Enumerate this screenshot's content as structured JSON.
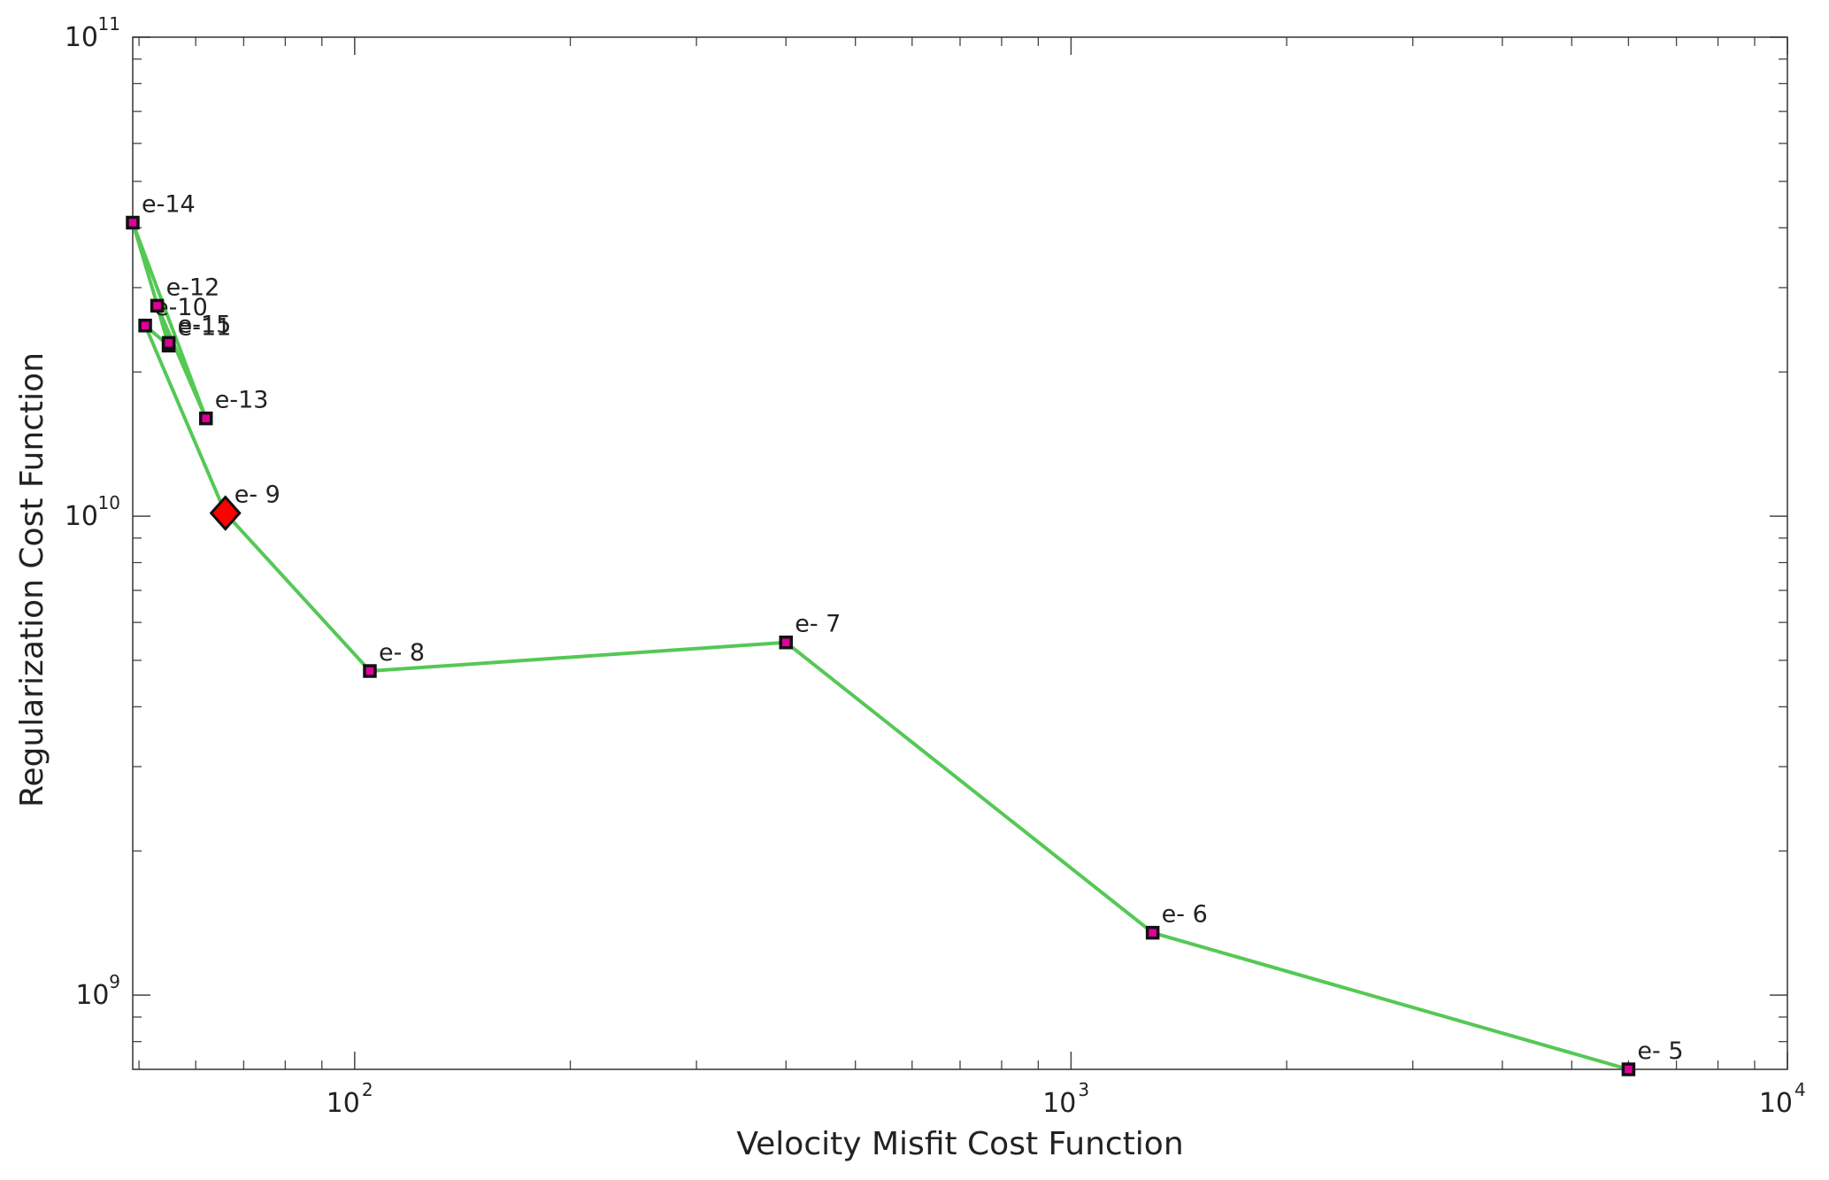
{
  "chart_data": {
    "type": "line",
    "title": "",
    "xlabel": "Velocity Misfit Cost Function",
    "ylabel": "Regularization Cost Function",
    "x_scale": "log",
    "y_scale": "log",
    "xlim": [
      49,
      10000
    ],
    "ylim": [
      700000000,
      100000000000
    ],
    "x_ticks": [
      {
        "value": 100,
        "base": "10",
        "exp": "2"
      },
      {
        "value": 1000,
        "base": "10",
        "exp": "3"
      },
      {
        "value": 10000,
        "base": "10",
        "exp": "4"
      }
    ],
    "y_ticks": [
      {
        "value": 1000000000,
        "base": "10",
        "exp": "9"
      },
      {
        "value": 10000000000,
        "base": "10",
        "exp": "10"
      },
      {
        "value": 100000000000,
        "base": "10",
        "exp": "11"
      }
    ],
    "grid": false,
    "colors": {
      "line": "#55c855",
      "marker_fill": "#e0009a",
      "marker_edge": "#111111",
      "highlight_fill": "#ff0000"
    },
    "series": [
      {
        "points": [
          {
            "label": "e- 5",
            "x": 6000,
            "y": 700000000
          },
          {
            "label": "e- 6",
            "x": 1300,
            "y": 1350000000
          },
          {
            "label": "e- 7",
            "x": 400,
            "y": 5450000000
          },
          {
            "label": "e- 8",
            "x": 105,
            "y": 4750000000
          },
          {
            "label": "e- 9",
            "x": 66,
            "y": 10150000000,
            "highlight": true
          },
          {
            "label": "e-10",
            "x": 51,
            "y": 25000000000
          },
          {
            "label": "e-11",
            "x": 55,
            "y": 22700000000
          },
          {
            "label": "e-12",
            "x": 53,
            "y": 27500000000
          },
          {
            "label": "e-13",
            "x": 62,
            "y": 16000000000
          },
          {
            "label": "e-14",
            "x": 49,
            "y": 41000000000
          },
          {
            "label": "e-15",
            "x": 55,
            "y": 23000000000
          }
        ]
      }
    ]
  }
}
